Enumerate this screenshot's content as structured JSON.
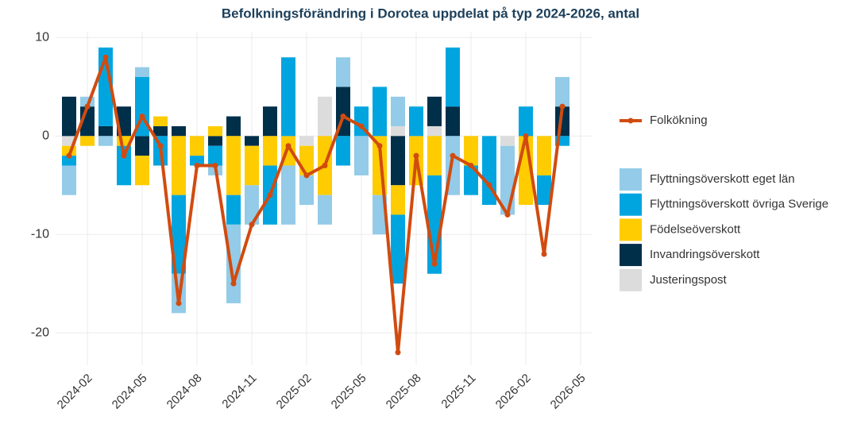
{
  "chart_data": {
    "type": "bar",
    "stacked": true,
    "title": "Befolkningsförändring i Dorotea uppdelat på typ 2024-2026, antal",
    "x": [
      "2024-01",
      "2024-02",
      "2024-03",
      "2024-04",
      "2024-05",
      "2024-06",
      "2024-07",
      "2024-08",
      "2024-09",
      "2024-10",
      "2024-11",
      "2024-12",
      "2025-01",
      "2025-02",
      "2025-03",
      "2025-04",
      "2025-05",
      "2025-06",
      "2025-07",
      "2025-08",
      "2025-09",
      "2025-10",
      "2025-11",
      "2025-12",
      "2026-01",
      "2026-02",
      "2026-03",
      "2026-04"
    ],
    "series": [
      {
        "name": "Flyttningsöverskott eget län",
        "color": "#93cbe8",
        "values": [
          -3,
          1,
          -1,
          0,
          1,
          0,
          -4,
          0,
          -1,
          -8,
          -4,
          0,
          -6,
          -3,
          -3,
          3,
          -4,
          -4,
          3,
          0,
          0,
          -6,
          0,
          0,
          -7,
          0,
          0,
          3
        ]
      },
      {
        "name": "Flyttningsöverskott övriga Sverige",
        "color": "#00a5e0",
        "values": [
          -1,
          0,
          8,
          -4,
          6,
          -3,
          -8,
          -1,
          -2,
          -3,
          0,
          -6,
          8,
          0,
          0,
          -3,
          3,
          5,
          -7,
          3,
          -10,
          6,
          -3,
          -7,
          0,
          3,
          -3,
          -1
        ]
      },
      {
        "name": "Födelseöverskott",
        "color": "#fecc00",
        "values": [
          -1,
          -1,
          0,
          -1,
          -3,
          1,
          -6,
          -2,
          1,
          -6,
          -4,
          -3,
          -3,
          -3,
          -6,
          0,
          0,
          -6,
          -3,
          -5,
          -4,
          0,
          -3,
          0,
          0,
          -7,
          -4,
          0
        ]
      },
      {
        "name": "Invandringsöverskott",
        "color": "#002f4a",
        "values": [
          4,
          3,
          1,
          3,
          -2,
          1,
          1,
          0,
          -1,
          2,
          -1,
          3,
          0,
          0,
          0,
          5,
          0,
          0,
          -5,
          0,
          3,
          3,
          0,
          0,
          0,
          0,
          0,
          3
        ]
      },
      {
        "name": "Justeringspost",
        "color": "#dcdcdc",
        "values": [
          -1,
          0,
          0,
          0,
          0,
          0,
          0,
          0,
          0,
          0,
          0,
          0,
          0,
          -1,
          4,
          0,
          0,
          0,
          1,
          0,
          1,
          0,
          0,
          0,
          -1,
          0,
          0,
          0
        ]
      }
    ],
    "line": {
      "name": "Folkökning",
      "color": "#d14b10",
      "values": [
        -2,
        3,
        8,
        -2,
        2,
        -1,
        -17,
        -3,
        -3,
        -15,
        -9,
        -6,
        -1,
        -4,
        -3,
        2,
        1,
        -1,
        -22,
        -2,
        -13,
        -2,
        -3,
        -5,
        -8,
        0,
        -12,
        3
      ]
    },
    "xticks": [
      "2024-02",
      "2024-05",
      "2024-08",
      "2024-11",
      "2025-02",
      "2025-05",
      "2025-08",
      "2025-11",
      "2026-02",
      "2026-05"
    ],
    "ylim": [
      -23.3,
      10.6
    ],
    "yticks": [
      -20,
      -10,
      0,
      10
    ],
    "grid": true,
    "legend": "right"
  }
}
